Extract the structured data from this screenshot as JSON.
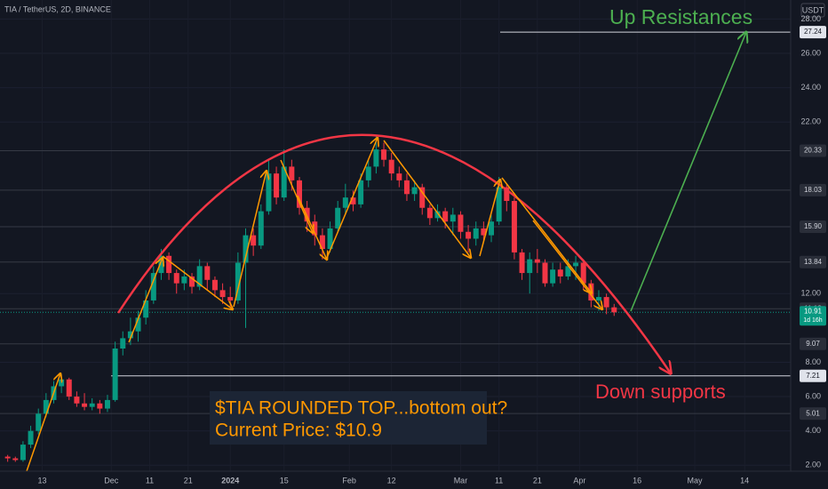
{
  "chart_data": {
    "type": "candlestick",
    "title": "TIA / TetherUS, 2D, BINANCE",
    "currency": "USDT",
    "up_color": "#089981",
    "down_color": "#f23645",
    "t": [
      3,
      5,
      7,
      9,
      11,
      13,
      15,
      17,
      19,
      21,
      23,
      25,
      27,
      29,
      31,
      33,
      35,
      37,
      39,
      41,
      43,
      45,
      47,
      49,
      51,
      53,
      55,
      57,
      59,
      61,
      63,
      65,
      67,
      69,
      71,
      73,
      75,
      77,
      79,
      81,
      83,
      85,
      87,
      89,
      91,
      93,
      95,
      97,
      99,
      101,
      103,
      105,
      107,
      109,
      111,
      113,
      115,
      117,
      119,
      121,
      123,
      125,
      127,
      129,
      131,
      133,
      135,
      137,
      139,
      141,
      143,
      145,
      147,
      149,
      151,
      153,
      155,
      157,
      159,
      161
    ],
    "open": [
      2.5,
      2.4,
      2.3,
      3.2,
      4.0,
      5.0,
      5.8,
      6.6,
      7.0,
      6.0,
      5.6,
      5.4,
      5.6,
      5.3,
      5.8,
      8.8,
      9.4,
      9.8,
      10.6,
      11.6,
      13.2,
      14.2,
      13.2,
      12.6,
      13.0,
      12.4,
      13.6,
      12.8,
      12.2,
      11.8,
      11.6,
      13.8,
      15.4,
      14.8,
      16.8,
      19.0,
      17.6,
      19.4,
      18.6,
      17.0,
      16.2,
      15.4,
      14.6,
      15.8,
      17.0,
      17.6,
      17.2,
      18.6,
      19.4,
      20.4,
      19.8,
      19.0,
      18.6,
      17.8,
      18.2,
      17.0,
      16.4,
      16.8,
      16.2,
      16.6,
      15.6,
      15.2,
      15.8,
      15.4,
      16.2,
      18.2,
      17.4,
      14.4,
      13.2,
      14.0,
      13.8,
      12.6,
      13.4,
      13.0,
      13.6,
      13.8,
      12.6,
      11.6,
      11.8,
      11.2
    ],
    "high": [
      2.6,
      2.5,
      3.4,
      4.3,
      5.3,
      6.2,
      6.9,
      7.3,
      7.1,
      6.3,
      6.2,
      5.9,
      5.8,
      6.1,
      9.2,
      9.8,
      10.6,
      11.0,
      12.2,
      13.6,
      14.6,
      14.4,
      13.4,
      13.4,
      13.2,
      14.0,
      13.8,
      13.0,
      12.6,
      12.4,
      14.4,
      15.8,
      15.8,
      17.2,
      19.8,
      19.4,
      20.4,
      19.8,
      18.8,
      17.4,
      16.6,
      15.8,
      16.2,
      17.4,
      18.4,
      18.0,
      19.0,
      19.8,
      21.2,
      20.8,
      20.2,
      19.4,
      19.0,
      18.6,
      18.4,
      17.2,
      17.2,
      17.0,
      17.0,
      16.8,
      16.0,
      16.2,
      16.2,
      16.6,
      18.8,
      18.4,
      17.6,
      14.6,
      14.4,
      14.6,
      14.0,
      13.8,
      13.8,
      14.0,
      14.2,
      14.0,
      12.8,
      12.2,
      12.0,
      11.4
    ],
    "low": [
      2.2,
      2.2,
      2.2,
      3.0,
      3.8,
      4.8,
      5.6,
      6.2,
      5.8,
      5.4,
      5.2,
      5.2,
      5.0,
      5.1,
      5.7,
      8.4,
      9.0,
      9.2,
      10.2,
      11.4,
      12.8,
      12.8,
      12.0,
      12.2,
      12.0,
      12.2,
      12.2,
      11.8,
      11.4,
      11.2,
      11.4,
      10.0,
      14.2,
      14.6,
      16.6,
      17.2,
      17.4,
      18.0,
      16.6,
      15.6,
      14.8,
      14.0,
      14.4,
      15.6,
      16.6,
      16.8,
      17.0,
      18.2,
      19.0,
      19.4,
      18.6,
      18.2,
      17.4,
      17.4,
      16.6,
      16.0,
      16.2,
      15.8,
      15.4,
      15.2,
      14.4,
      14.8,
      15.0,
      15.0,
      16.0,
      16.8,
      14.0,
      12.8,
      12.0,
      13.2,
      12.4,
      12.4,
      12.6,
      12.8,
      12.8,
      12.2,
      11.2,
      11.0,
      10.8,
      10.7
    ],
    "close": [
      2.4,
      2.3,
      3.2,
      4.0,
      5.0,
      5.8,
      6.6,
      7.0,
      6.0,
      5.6,
      5.4,
      5.6,
      5.3,
      5.8,
      8.8,
      9.4,
      9.8,
      10.6,
      11.6,
      13.2,
      14.2,
      13.2,
      12.6,
      13.0,
      12.4,
      13.6,
      12.8,
      12.2,
      11.8,
      11.6,
      13.8,
      15.4,
      14.8,
      16.8,
      19.0,
      17.6,
      19.4,
      18.6,
      17.0,
      16.2,
      15.4,
      14.6,
      15.8,
      17.0,
      17.6,
      17.2,
      18.6,
      19.4,
      20.4,
      19.8,
      19.0,
      18.6,
      17.8,
      18.2,
      17.0,
      16.4,
      16.8,
      16.2,
      16.6,
      15.6,
      15.2,
      15.8,
      15.4,
      16.2,
      18.2,
      17.4,
      14.4,
      13.2,
      14.0,
      13.8,
      12.6,
      13.4,
      13.0,
      13.6,
      13.8,
      12.6,
      11.6,
      11.8,
      11.2,
      10.91
    ],
    "xlim": [
      1,
      207
    ],
    "xticks": [
      {
        "value": 12,
        "label": "13"
      },
      {
        "value": 30,
        "label": "Dec"
      },
      {
        "value": 40,
        "label": "11"
      },
      {
        "value": 50,
        "label": "21"
      },
      {
        "value": 61,
        "label": "2024"
      },
      {
        "value": 75,
        "label": "15"
      },
      {
        "value": 92,
        "label": "Feb"
      },
      {
        "value": 103,
        "label": "12"
      },
      {
        "value": 121,
        "label": "Mar"
      },
      {
        "value": 131,
        "label": "11"
      },
      {
        "value": 141,
        "label": "21"
      },
      {
        "value": 152,
        "label": "Apr"
      },
      {
        "value": 167,
        "label": "16"
      },
      {
        "value": 182,
        "label": "May"
      },
      {
        "value": 195,
        "label": "14"
      }
    ],
    "ylim": [
      1.65,
      29.11
    ],
    "yticks": [
      {
        "value": 2,
        "label": "2.00"
      },
      {
        "value": 4,
        "label": "4.00"
      },
      {
        "value": 6,
        "label": "6.00"
      },
      {
        "value": 8,
        "label": "8.00"
      },
      {
        "value": 12,
        "label": "12.00"
      },
      {
        "value": 22,
        "label": "22.00"
      },
      {
        "value": 24,
        "label": "24.00"
      },
      {
        "value": 26,
        "label": "26.00"
      },
      {
        "value": 28,
        "label": "28.00"
      }
    ],
    "levels": [
      27.24,
      20.33,
      18.03,
      {
        "value": 15.9,
        "label": "15.90"
      },
      13.84,
      11.12,
      9.07,
      7.21,
      5.01
    ],
    "last_price": 10.91,
    "countdown": "1d 16h",
    "annotations": {
      "up": "Up Resistances",
      "down": "Down supports",
      "note": [
        "$TIA ROUNDED TOP...bottom out?",
        "Current Price: $10.9"
      ]
    }
  }
}
